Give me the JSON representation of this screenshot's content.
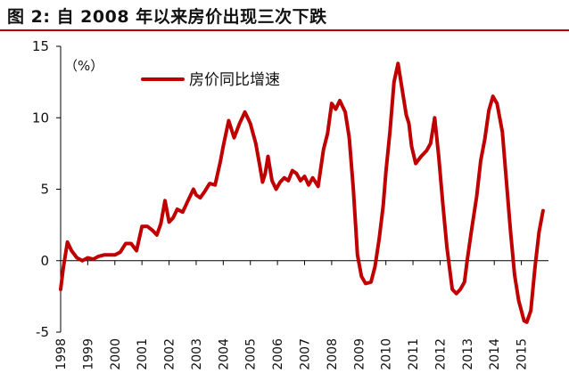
{
  "figure_title": "图 2:    自 2008 年以来房价出现三次下跌",
  "colors": {
    "line": "#c00000",
    "accent": "#c00000",
    "axis": "#000000"
  },
  "chart_data": {
    "type": "line",
    "title": "",
    "xlabel": "",
    "ylabel": "",
    "unit_label": "（%）",
    "xlim": [
      1998,
      2016
    ],
    "ylim": [
      -5,
      15
    ],
    "y_ticks": [
      "15",
      "10",
      "5",
      "0",
      "-5"
    ],
    "y_tick_values": [
      15,
      10,
      5,
      0,
      -5
    ],
    "x_tick_labels": [
      "1998",
      "1999",
      "2000",
      "2001",
      "2002",
      "2003",
      "2004",
      "2005",
      "2006",
      "2007",
      "2008",
      "2009",
      "2010",
      "2011",
      "2012",
      "2013",
      "2014",
      "2015"
    ],
    "x_tick_values": [
      1998,
      1999,
      2000,
      2001,
      2002,
      2003,
      2004,
      2005,
      2006,
      2007,
      2008,
      2009,
      2010,
      2011,
      2012,
      2013,
      2014,
      2015
    ],
    "grid": false,
    "legend": "top-left",
    "series": [
      {
        "name": "房价同比增速",
        "x": [
          1998.0,
          1998.1,
          1998.25,
          1998.4,
          1998.6,
          1998.8,
          1999.0,
          1999.2,
          1999.4,
          1999.6,
          1999.8,
          2000.0,
          2000.2,
          2000.4,
          2000.6,
          2000.8,
          2001.0,
          2001.2,
          2001.4,
          2001.55,
          2001.7,
          2001.85,
          2002.0,
          2002.15,
          2002.3,
          2002.5,
          2002.7,
          2002.9,
          2003.0,
          2003.15,
          2003.3,
          2003.5,
          2003.7,
          2003.9,
          2004.0,
          2004.2,
          2004.4,
          2004.6,
          2004.8,
          2005.0,
          2005.2,
          2005.35,
          2005.45,
          2005.55,
          2005.65,
          2005.8,
          2005.95,
          2006.1,
          2006.25,
          2006.4,
          2006.55,
          2006.7,
          2006.85,
          2007.0,
          2007.15,
          2007.3,
          2007.5,
          2007.7,
          2007.85,
          2008.0,
          2008.15,
          2008.3,
          2008.5,
          2008.65,
          2008.8,
          2008.95,
          2009.1,
          2009.25,
          2009.45,
          2009.6,
          2009.75,
          2009.9,
          2010.0,
          2010.15,
          2010.3,
          2010.45,
          2010.6,
          2010.75,
          2010.85,
          2010.95,
          2011.1,
          2011.3,
          2011.5,
          2011.65,
          2011.8,
          2011.95,
          2012.1,
          2012.25,
          2012.45,
          2012.6,
          2012.75,
          2012.9,
          2013.0,
          2013.15,
          2013.35,
          2013.5,
          2013.65,
          2013.8,
          2013.95,
          2014.1,
          2014.3,
          2014.45,
          2014.6,
          2014.75,
          2014.9,
          2015.0,
          2015.1,
          2015.2,
          2015.35,
          2015.5,
          2015.65,
          2015.8
        ],
        "values": [
          -2.0,
          -0.5,
          1.3,
          0.7,
          0.2,
          0.0,
          0.2,
          0.1,
          0.3,
          0.4,
          0.4,
          0.4,
          0.6,
          1.2,
          1.2,
          0.7,
          2.4,
          2.4,
          2.1,
          1.8,
          2.6,
          4.2,
          2.7,
          3.0,
          3.6,
          3.4,
          4.2,
          5.0,
          4.6,
          4.4,
          4.8,
          5.4,
          5.3,
          7.0,
          8.0,
          9.8,
          8.6,
          9.6,
          10.4,
          9.6,
          8.2,
          6.6,
          5.5,
          6.1,
          7.3,
          5.6,
          5.0,
          5.5,
          5.8,
          5.6,
          6.3,
          6.1,
          5.6,
          5.9,
          5.3,
          5.8,
          5.2,
          7.8,
          8.9,
          11.0,
          10.6,
          11.2,
          10.4,
          8.6,
          5.0,
          0.4,
          -1.1,
          -1.6,
          -1.5,
          -0.4,
          1.5,
          3.8,
          6.2,
          9.0,
          12.5,
          13.8,
          12.0,
          10.2,
          9.6,
          8.0,
          6.8,
          7.3,
          7.7,
          8.2,
          10.0,
          7.3,
          4.0,
          1.0,
          -2.0,
          -2.3,
          -2.0,
          -1.5,
          0.0,
          2.0,
          4.5,
          7.0,
          8.5,
          10.5,
          11.5,
          11.0,
          9.0,
          5.5,
          2.0,
          -1.0,
          -2.8,
          -3.5,
          -4.2,
          -4.3,
          -3.5,
          -0.5,
          2.0,
          3.5
        ]
      }
    ]
  }
}
